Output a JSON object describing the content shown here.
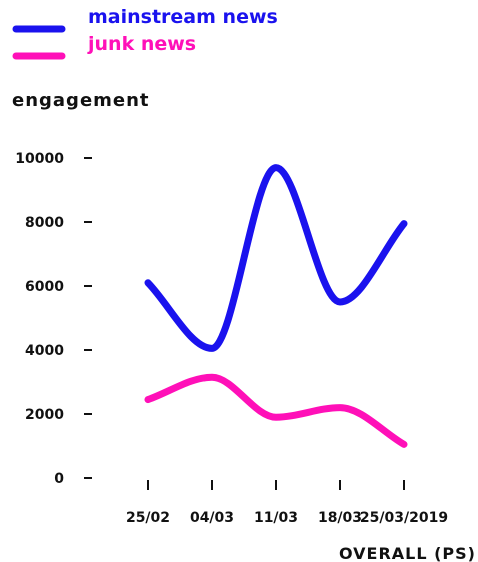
{
  "chart_data": {
    "type": "line",
    "title": "",
    "ylabel": "engagement",
    "xlabel": "",
    "footer": "OVERALL (PS)",
    "categories": [
      "25/02",
      "04/03",
      "11/03",
      "18/03",
      "25/03/2019"
    ],
    "yticks": [
      0,
      2000,
      4000,
      6000,
      8000,
      10000
    ],
    "ylim": [
      0,
      10000
    ],
    "grid": false,
    "legend_position": "top-left",
    "series": [
      {
        "name": "mainstream news",
        "color": "#1a12ee",
        "values": [
          6100,
          4050,
          9700,
          5500,
          7950
        ]
      },
      {
        "name": "junk news",
        "color": "#ff10b8",
        "values": [
          2450,
          3150,
          1900,
          2200,
          1050
        ]
      }
    ]
  }
}
